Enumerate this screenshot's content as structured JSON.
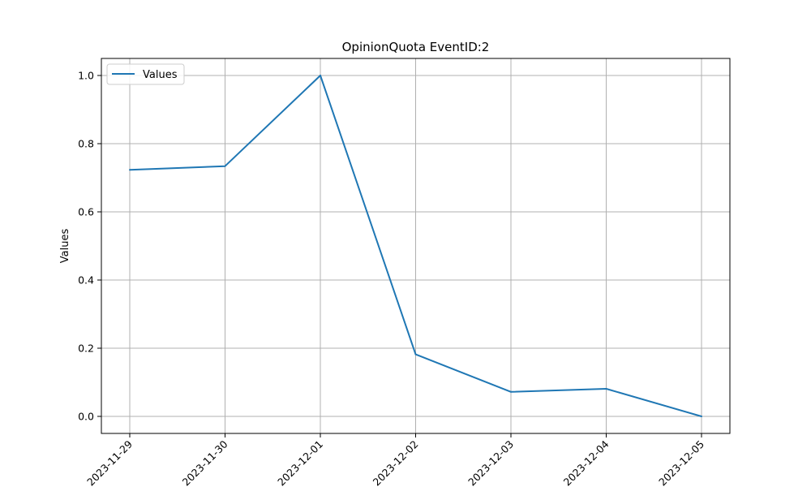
{
  "chart_data": {
    "type": "line",
    "title": "OpinionQuota EventID:2",
    "xlabel": "",
    "ylabel": "Values",
    "x": [
      "2023-11-29",
      "2023-11-30",
      "2023-12-01",
      "2023-12-02",
      "2023-12-03",
      "2023-12-04",
      "2023-12-05"
    ],
    "series": [
      {
        "name": "Values",
        "color": "#1f77b4",
        "values": [
          0.723,
          0.734,
          1.0,
          0.182,
          0.072,
          0.081,
          0.0
        ]
      }
    ],
    "yticks": [
      "0.0",
      "0.2",
      "0.4",
      "0.6",
      "0.8",
      "1.0"
    ],
    "ylim": [
      -0.05,
      1.05
    ],
    "grid": true,
    "legend": "top-left"
  }
}
